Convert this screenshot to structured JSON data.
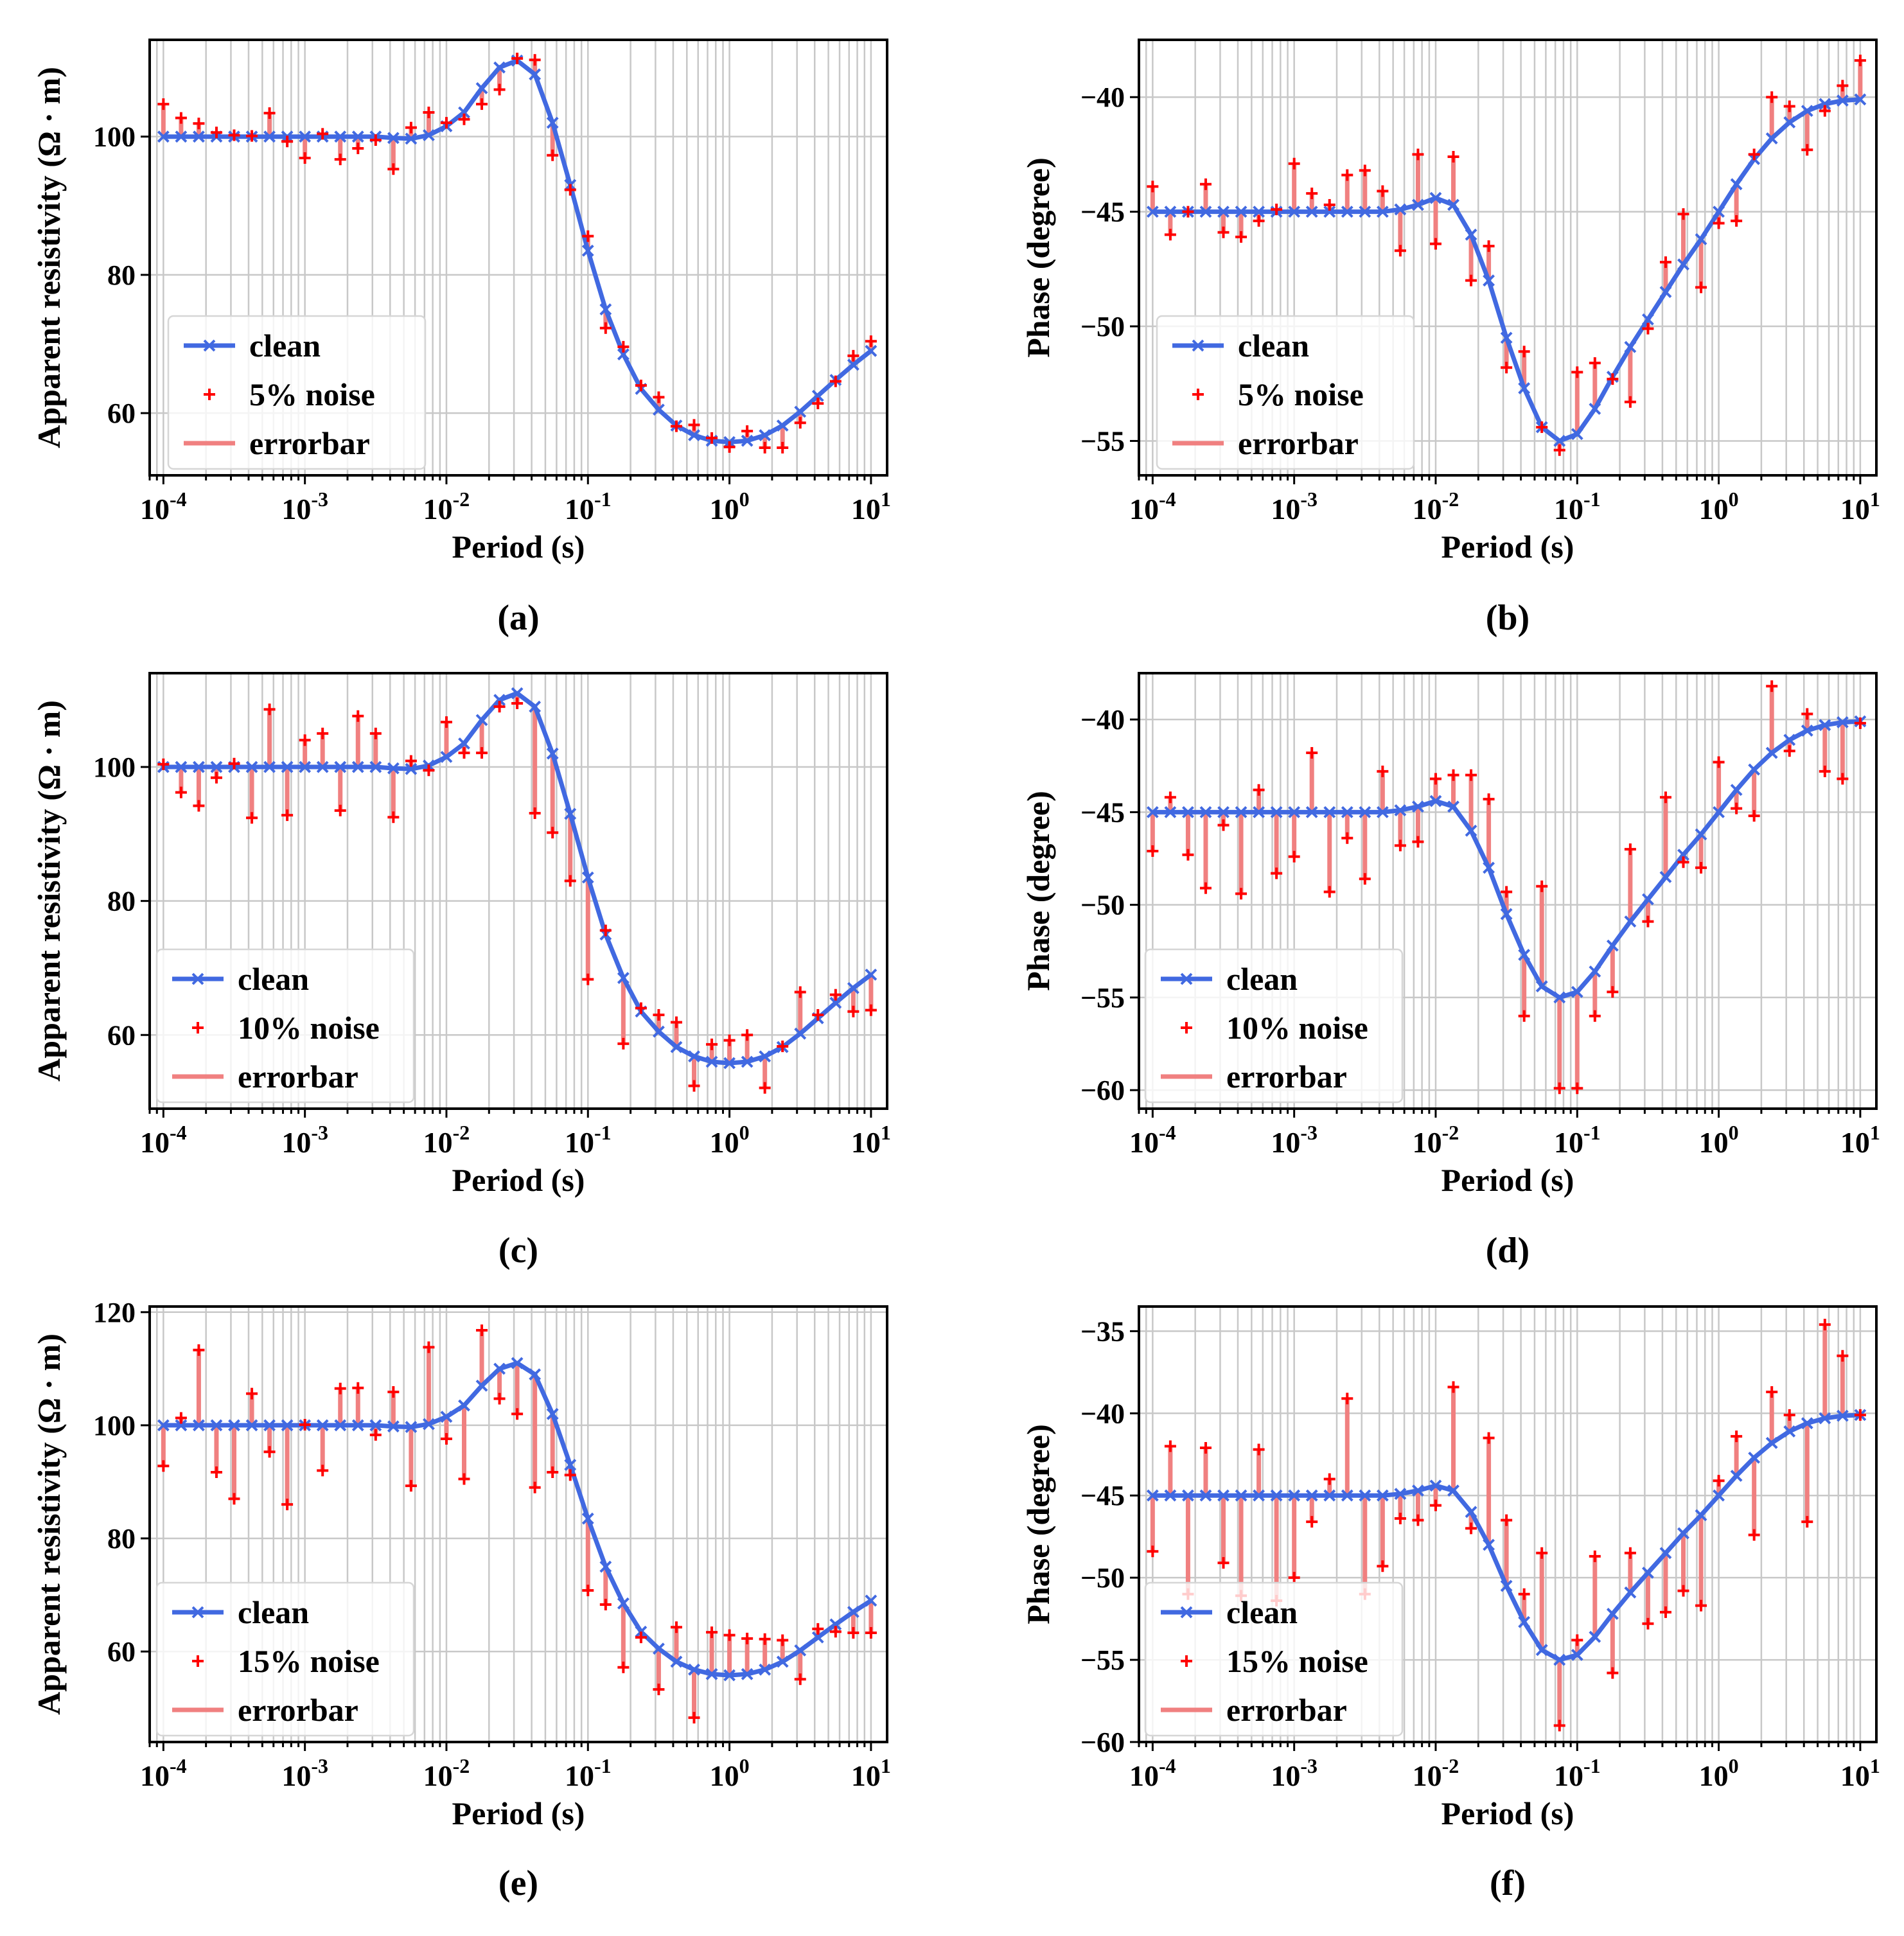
{
  "figure": {
    "panels": [
      "(a)",
      "(b)",
      "(c)",
      "(d)",
      "(e)",
      "(f)"
    ]
  },
  "colors": {
    "clean": "#4169e1",
    "noise": "#ff0000",
    "errorbar": "#f08080",
    "grid": "#c8c8c8"
  },
  "chart_data": [
    {
      "type": "line",
      "panel_label": "(a)",
      "xlabel": "Period (s)",
      "ylabel": "Apparent resistivity (Ω · m)",
      "xscale": "log",
      "xlim": [
        8e-05,
        13
      ],
      "ylim": [
        51,
        114
      ],
      "yticks": [
        60,
        80,
        100
      ],
      "xticks": [
        "10^-4",
        "10^-3",
        "10^-2",
        "10^-1",
        "10^0",
        "10^1"
      ],
      "legend": {
        "location": "lower-left",
        "entries": [
          "clean",
          "5% noise",
          "errorbar"
        ]
      },
      "x": [
        -4,
        -3.875,
        -3.75,
        -3.625,
        -3.5,
        -3.375,
        -3.25,
        -3.125,
        -3,
        -2.875,
        -2.75,
        -2.625,
        -2.5,
        -2.375,
        -2.25,
        -2.125,
        -2,
        -1.875,
        -1.75,
        -1.625,
        -1.5,
        -1.375,
        -1.25,
        -1.125,
        -1,
        -0.875,
        -0.75,
        -0.625,
        -0.5,
        -0.375,
        -0.25,
        -0.125,
        0,
        0.125,
        0.25,
        0.375,
        0.5,
        0.625,
        0.75,
        0.875,
        1
      ],
      "series": [
        {
          "name": "clean",
          "values": [
            100,
            100,
            100,
            100,
            100,
            100,
            100,
            100,
            100,
            100,
            100,
            100,
            100,
            99.8,
            99.7,
            100.2,
            101.5,
            103.5,
            107,
            110,
            111,
            109,
            102,
            93,
            83.5,
            75,
            68.5,
            63.5,
            60.5,
            58.2,
            56.8,
            56,
            55.8,
            56,
            56.8,
            58.2,
            60.2,
            62.5,
            64.8,
            67,
            69
          ]
        },
        {
          "name": "5% noise",
          "values": [
            104.7,
            102.7,
            101.9,
            100.6,
            100.2,
            100.1,
            103.4,
            99.3,
            96.9,
            100.4,
            96.7,
            98.3,
            99.5,
            95.3,
            101.3,
            103.5,
            102.0,
            102.5,
            104.7,
            106.8,
            111.3,
            111.1,
            97.3,
            92.3,
            85.6,
            72.3,
            69.6,
            64.0,
            62.3,
            58.1,
            58.3,
            56.4,
            55.1,
            57.4,
            55.0,
            55.0,
            58.6,
            61.4,
            64.6,
            68.3,
            70.4
          ]
        }
      ]
    },
    {
      "type": "line",
      "panel_label": "(b)",
      "xlabel": "Period (s)",
      "ylabel": "Phase (degree)",
      "xscale": "log",
      "xlim": [
        8e-05,
        13
      ],
      "ylim": [
        -56.5,
        -37.5
      ],
      "yticks": [
        -55,
        -50,
        -45,
        -40
      ],
      "xticks": [
        "10^-4",
        "10^-3",
        "10^-2",
        "10^-1",
        "10^0",
        "10^1"
      ],
      "legend": {
        "location": "lower-left",
        "entries": [
          "clean",
          "5% noise",
          "errorbar"
        ]
      },
      "x": [
        -4,
        -3.875,
        -3.75,
        -3.625,
        -3.5,
        -3.375,
        -3.25,
        -3.125,
        -3,
        -2.875,
        -2.75,
        -2.625,
        -2.5,
        -2.375,
        -2.25,
        -2.125,
        -2,
        -1.875,
        -1.75,
        -1.625,
        -1.5,
        -1.375,
        -1.25,
        -1.125,
        -1,
        -0.875,
        -0.75,
        -0.625,
        -0.5,
        -0.375,
        -0.25,
        -0.125,
        0,
        0.125,
        0.25,
        0.375,
        0.5,
        0.625,
        0.75,
        0.875,
        1
      ],
      "series": [
        {
          "name": "clean",
          "values": [
            -45,
            -45,
            -45,
            -45,
            -45,
            -45,
            -45,
            -45,
            -45,
            -45,
            -45,
            -45,
            -45,
            -45,
            -44.9,
            -44.7,
            -44.4,
            -44.7,
            -46,
            -48,
            -50.5,
            -52.7,
            -54.4,
            -55,
            -54.7,
            -53.6,
            -52.2,
            -50.9,
            -49.7,
            -48.5,
            -47.3,
            -46.2,
            -45,
            -43.8,
            -42.7,
            -41.8,
            -41.1,
            -40.6,
            -40.3,
            -40.15,
            -40.1
          ]
        },
        {
          "name": "5% noise",
          "values": [
            -43.9,
            -46.0,
            -45.0,
            -43.8,
            -45.9,
            -46.1,
            -45.4,
            -44.9,
            -42.9,
            -44.2,
            -44.7,
            -43.4,
            -43.2,
            -44.1,
            -46.7,
            -42.5,
            -46.4,
            -42.6,
            -48.0,
            -46.5,
            -51.8,
            -51.1,
            -54.4,
            -55.4,
            -52.0,
            -51.6,
            -52.3,
            -53.3,
            -50.1,
            -47.2,
            -45.1,
            -48.3,
            -45.5,
            -45.4,
            -42.5,
            -40.0,
            -40.4,
            -42.3,
            -40.6,
            -39.5,
            -38.4
          ]
        }
      ]
    },
    {
      "type": "line",
      "panel_label": "(c)",
      "xlabel": "Period (s)",
      "ylabel": "Apparent resistivity (Ω · m)",
      "xscale": "log",
      "xlim": [
        8e-05,
        13
      ],
      "ylim": [
        49,
        114
      ],
      "yticks": [
        60,
        80,
        100
      ],
      "xticks": [
        "10^-4",
        "10^-3",
        "10^-2",
        "10^-1",
        "10^0",
        "10^1"
      ],
      "legend": {
        "location": "lower-left",
        "entries": [
          "clean",
          "10% noise",
          "errorbar"
        ]
      },
      "x": [
        -4,
        -3.875,
        -3.75,
        -3.625,
        -3.5,
        -3.375,
        -3.25,
        -3.125,
        -3,
        -2.875,
        -2.75,
        -2.625,
        -2.5,
        -2.375,
        -2.25,
        -2.125,
        -2,
        -1.875,
        -1.75,
        -1.625,
        -1.5,
        -1.375,
        -1.25,
        -1.125,
        -1,
        -0.875,
        -0.75,
        -0.625,
        -0.5,
        -0.375,
        -0.25,
        -0.125,
        0,
        0.125,
        0.25,
        0.375,
        0.5,
        0.625,
        0.75,
        0.875,
        1
      ],
      "series": [
        {
          "name": "clean",
          "values": [
            100,
            100,
            100,
            100,
            100,
            100,
            100,
            100,
            100,
            100,
            100,
            100,
            100,
            99.8,
            99.7,
            100.2,
            101.5,
            103.5,
            107,
            110,
            111,
            109,
            102,
            93,
            83.5,
            75,
            68.5,
            63.5,
            60.5,
            58.2,
            56.8,
            56,
            55.8,
            56,
            56.8,
            58.2,
            60.2,
            62.5,
            64.8,
            67,
            69
          ]
        },
        {
          "name": "10% noise",
          "values": [
            100.4,
            96.2,
            94.2,
            98.4,
            100.5,
            92.4,
            108.6,
            92.8,
            104.0,
            105.0,
            93.5,
            107.6,
            105.0,
            92.5,
            100.9,
            99.5,
            106.7,
            102.1,
            102.1,
            109.0,
            109.5,
            93.1,
            90.2,
            83.0,
            68.3,
            75.6,
            58.7,
            64.0,
            63.0,
            61.9,
            52.4,
            58.6,
            59.2,
            60.0,
            52.1,
            58.3,
            66.4,
            63.0,
            66.0,
            63.5,
            63.7
          ]
        }
      ]
    },
    {
      "type": "line",
      "panel_label": "(d)",
      "xlabel": "Period (s)",
      "ylabel": "Phase (degree)",
      "xscale": "log",
      "xlim": [
        8e-05,
        13
      ],
      "ylim": [
        -61,
        -37.5
      ],
      "yticks": [
        -60,
        -55,
        -50,
        -45,
        -40
      ],
      "xticks": [
        "10^-4",
        "10^-3",
        "10^-2",
        "10^-1",
        "10^0",
        "10^1"
      ],
      "legend": {
        "location": "lower-left",
        "entries": [
          "clean",
          "10% noise",
          "errorbar"
        ]
      },
      "x": [
        -4,
        -3.875,
        -3.75,
        -3.625,
        -3.5,
        -3.375,
        -3.25,
        -3.125,
        -3,
        -2.875,
        -2.75,
        -2.625,
        -2.5,
        -2.375,
        -2.25,
        -2.125,
        -2,
        -1.875,
        -1.75,
        -1.625,
        -1.5,
        -1.375,
        -1.25,
        -1.125,
        -1,
        -0.875,
        -0.75,
        -0.625,
        -0.5,
        -0.375,
        -0.25,
        -0.125,
        0,
        0.125,
        0.25,
        0.375,
        0.5,
        0.625,
        0.75,
        0.875,
        1
      ],
      "series": [
        {
          "name": "clean",
          "values": [
            -45,
            -45,
            -45,
            -45,
            -45,
            -45,
            -45,
            -45,
            -45,
            -45,
            -45,
            -45,
            -45,
            -45,
            -44.9,
            -44.7,
            -44.4,
            -44.7,
            -46,
            -48,
            -50.5,
            -52.7,
            -54.4,
            -55,
            -54.7,
            -53.6,
            -52.2,
            -50.9,
            -49.7,
            -48.5,
            -47.3,
            -46.2,
            -45,
            -43.8,
            -42.7,
            -41.8,
            -41.1,
            -40.6,
            -40.3,
            -40.15,
            -40.1
          ]
        },
        {
          "name": "10% noise",
          "values": [
            -47.1,
            -44.2,
            -47.3,
            -49.1,
            -45.7,
            -49.4,
            -43.8,
            -48.3,
            -47.4,
            -41.8,
            -49.3,
            -46.4,
            -48.6,
            -42.8,
            -46.8,
            -46.6,
            -43.2,
            -43.0,
            -43.0,
            -44.3,
            -49.3,
            -56.0,
            -49.0,
            -59.9,
            -59.9,
            -56.0,
            -54.7,
            -47.0,
            -50.9,
            -44.2,
            -47.7,
            -48.0,
            -42.3,
            -44.8,
            -45.2,
            -38.2,
            -41.7,
            -39.7,
            -42.8,
            -43.2,
            -40.2
          ]
        }
      ]
    },
    {
      "type": "line",
      "panel_label": "(e)",
      "xlabel": "Period (s)",
      "ylabel": "Apparent resistivity (Ω · m)",
      "xscale": "log",
      "xlim": [
        8e-05,
        13
      ],
      "ylim": [
        44,
        121
      ],
      "yticks": [
        60,
        80,
        100,
        120
      ],
      "xticks": [
        "10^-4",
        "10^-3",
        "10^-2",
        "10^-1",
        "10^0",
        "10^1"
      ],
      "legend": {
        "location": "lower-left",
        "entries": [
          "clean",
          "15% noise",
          "errorbar"
        ]
      },
      "x": [
        -4,
        -3.875,
        -3.75,
        -3.625,
        -3.5,
        -3.375,
        -3.25,
        -3.125,
        -3,
        -2.875,
        -2.75,
        -2.625,
        -2.5,
        -2.375,
        -2.25,
        -2.125,
        -2,
        -1.875,
        -1.75,
        -1.625,
        -1.5,
        -1.375,
        -1.25,
        -1.125,
        -1,
        -0.875,
        -0.75,
        -0.625,
        -0.5,
        -0.375,
        -0.25,
        -0.125,
        0,
        0.125,
        0.25,
        0.375,
        0.5,
        0.625,
        0.75,
        0.875,
        1
      ],
      "series": [
        {
          "name": "clean",
          "values": [
            100,
            100,
            100,
            100,
            100,
            100,
            100,
            100,
            100,
            100,
            100,
            100,
            100,
            99.8,
            99.7,
            100.2,
            101.5,
            103.5,
            107,
            110,
            111,
            109,
            102,
            93,
            83.5,
            75,
            68.5,
            63.5,
            60.5,
            58.2,
            56.8,
            56,
            55.8,
            56,
            56.8,
            58.2,
            60.2,
            62.5,
            64.8,
            67,
            69
          ]
        },
        {
          "name": "15% noise",
          "values": [
            92.8,
            101.3,
            113.3,
            91.7,
            87.0,
            105.6,
            95.3,
            86.0,
            100.1,
            92.0,
            106.5,
            106.6,
            98.3,
            105.9,
            89.3,
            113.8,
            97.6,
            90.5,
            116.8,
            104.7,
            102.0,
            89.0,
            91.7,
            91.2,
            70.8,
            68.3,
            57.2,
            62.5,
            53.3,
            64.3,
            48.3,
            63.4,
            62.9,
            62.3,
            62.2,
            62.0,
            55.1,
            64.0,
            63.5,
            63.3,
            63.3
          ]
        }
      ]
    },
    {
      "type": "line",
      "panel_label": "(f)",
      "xlabel": "Period (s)",
      "ylabel": "Phase (degree)",
      "xscale": "log",
      "xlim": [
        8e-05,
        13
      ],
      "ylim": [
        -60,
        -33.5
      ],
      "yticks": [
        -60,
        -55,
        -50,
        -45,
        -40,
        -35
      ],
      "xticks": [
        "10^-4",
        "10^-3",
        "10^-2",
        "10^-1",
        "10^0",
        "10^1"
      ],
      "legend": {
        "location": "lower-left",
        "entries": [
          "clean",
          "15% noise",
          "errorbar"
        ]
      },
      "x": [
        -4,
        -3.875,
        -3.75,
        -3.625,
        -3.5,
        -3.375,
        -3.25,
        -3.125,
        -3,
        -2.875,
        -2.75,
        -2.625,
        -2.5,
        -2.375,
        -2.25,
        -2.125,
        -2,
        -1.875,
        -1.75,
        -1.625,
        -1.5,
        -1.375,
        -1.25,
        -1.125,
        -1,
        -0.875,
        -0.75,
        -0.625,
        -0.5,
        -0.375,
        -0.25,
        -0.125,
        0,
        0.125,
        0.25,
        0.375,
        0.5,
        0.625,
        0.75,
        0.875,
        1
      ],
      "series": [
        {
          "name": "clean",
          "values": [
            -45,
            -45,
            -45,
            -45,
            -45,
            -45,
            -45,
            -45,
            -45,
            -45,
            -45,
            -45,
            -45,
            -45,
            -44.9,
            -44.7,
            -44.4,
            -44.7,
            -46,
            -48,
            -50.5,
            -52.7,
            -54.4,
            -55,
            -54.7,
            -53.6,
            -52.2,
            -50.9,
            -49.7,
            -48.5,
            -47.3,
            -46.2,
            -45,
            -43.8,
            -42.7,
            -41.8,
            -41.1,
            -40.6,
            -40.3,
            -40.15,
            -40.1
          ]
        },
        {
          "name": "15% noise",
          "values": [
            -48.4,
            -42.0,
            -51.0,
            -42.1,
            -49.1,
            -51.1,
            -42.2,
            -51.4,
            -50.0,
            -46.6,
            -44.0,
            -39.1,
            -51.0,
            -49.3,
            -46.4,
            -46.5,
            -45.6,
            -38.4,
            -47.0,
            -41.5,
            -46.5,
            -51.0,
            -48.5,
            -59.0,
            -53.8,
            -48.7,
            -55.8,
            -48.5,
            -52.8,
            -52.1,
            -50.8,
            -51.7,
            -44.1,
            -41.4,
            -47.4,
            -38.7,
            -40.1,
            -46.6,
            -34.6,
            -36.5,
            -40.1
          ]
        }
      ]
    }
  ]
}
